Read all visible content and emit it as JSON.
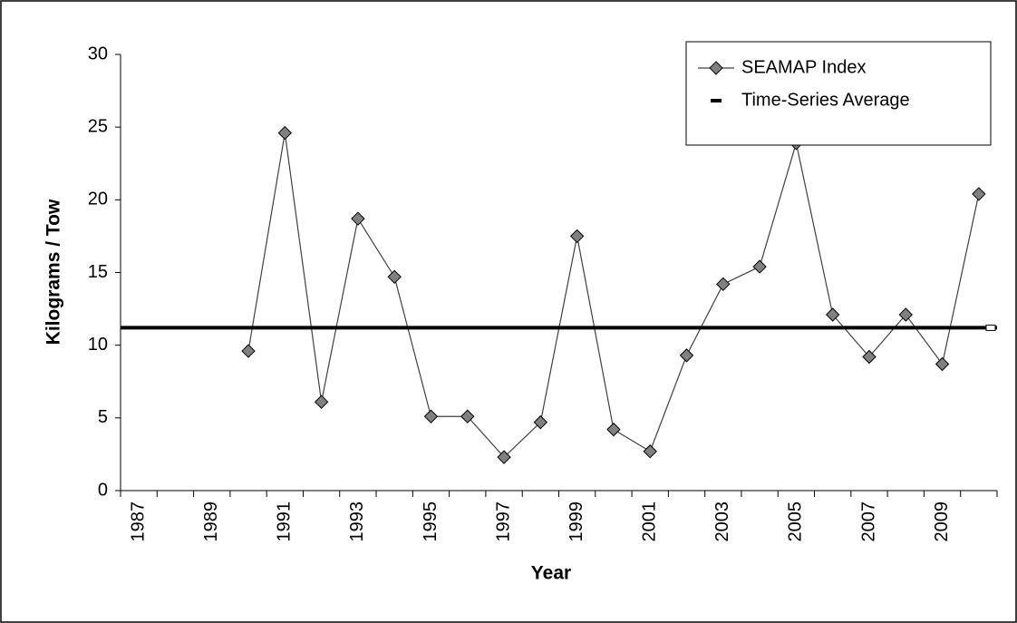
{
  "chart_data": {
    "type": "line",
    "x_label": "Year",
    "y_label": "Kilograms / Tow",
    "categories": [
      "1987",
      null,
      "1989",
      null,
      "1991",
      null,
      "1993",
      null,
      "1995",
      null,
      "1997",
      null,
      "1999",
      null,
      "2001",
      null,
      "2003",
      null,
      "2005",
      null,
      "2007",
      null,
      "2009",
      null
    ],
    "series": [
      {
        "name": "SEAMAP Index",
        "color": "#808080",
        "values": [
          null,
          null,
          null,
          9.6,
          24.6,
          6.1,
          18.7,
          14.7,
          5.1,
          5.1,
          2.3,
          4.7,
          17.5,
          4.2,
          2.7,
          9.3,
          14.2,
          15.4,
          23.9,
          12.1,
          9.2,
          12.1,
          8.7,
          20.4
        ]
      }
    ],
    "reference_line": {
      "name": "Time-Series Average",
      "value": 11.2,
      "color": "#000000"
    },
    "ylim": [
      0,
      30
    ],
    "yticks": [
      0,
      5,
      10,
      15,
      20,
      25,
      30
    ],
    "legend": "top-right"
  }
}
